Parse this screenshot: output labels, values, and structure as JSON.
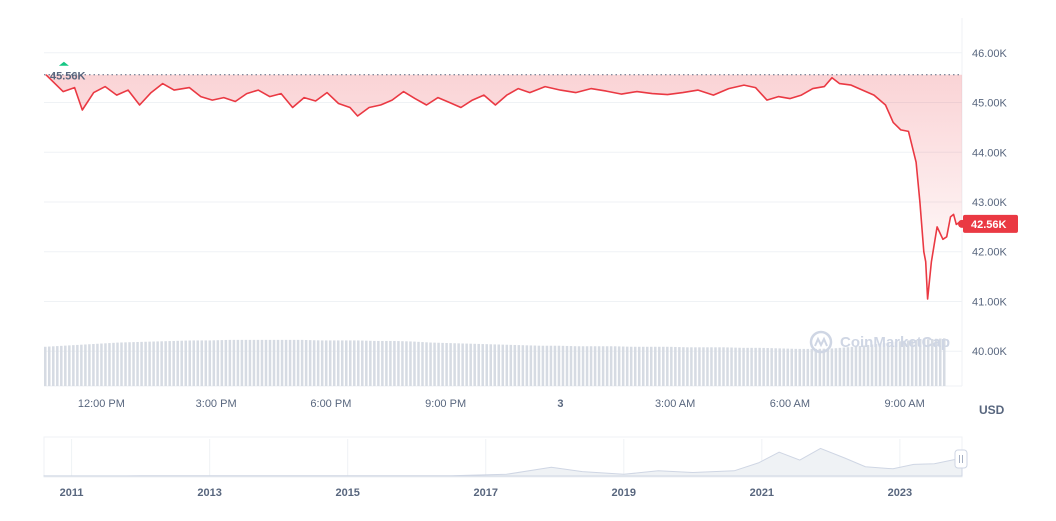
{
  "colors": {
    "price_line": "#ea3943",
    "fill_top": "#ea3943",
    "open_marker": "#16c784",
    "volume_bar": "#d6dbe3",
    "grid": "#eff2f5",
    "navigator_line": "#cfd6e4"
  },
  "chart_data": {
    "type": "line",
    "title": "",
    "xlabel": "",
    "ylabel": "",
    "currency_label": "USD",
    "watermark": "CoinMarketCap",
    "open_label": "45.56K",
    "open_value": 45560,
    "current_label": "42.56K",
    "current_value": 42560,
    "ylim": [
      39300,
      46700
    ],
    "y_ticks": [
      {
        "value": 40000,
        "label": "40.00K"
      },
      {
        "value": 41000,
        "label": "41.00K"
      },
      {
        "value": 42000,
        "label": "42.00K"
      },
      {
        "value": 43000,
        "label": "43.00K"
      },
      {
        "value": 44000,
        "label": "44.00K"
      },
      {
        "value": 45000,
        "label": "45.00K"
      },
      {
        "value": 46000,
        "label": "46.00K"
      }
    ],
    "x_range_hours": [
      10.5,
      34.5
    ],
    "x_ticks": [
      {
        "hour": 12,
        "label": "12:00 PM",
        "bold": false
      },
      {
        "hour": 15,
        "label": "3:00 PM",
        "bold": false
      },
      {
        "hour": 18,
        "label": "6:00 PM",
        "bold": false
      },
      {
        "hour": 21,
        "label": "9:00 PM",
        "bold": false
      },
      {
        "hour": 24,
        "label": "3",
        "bold": true
      },
      {
        "hour": 27,
        "label": "3:00 AM",
        "bold": false
      },
      {
        "hour": 30,
        "label": "6:00 AM",
        "bold": false
      },
      {
        "hour": 33,
        "label": "9:00 AM",
        "bold": false
      }
    ],
    "series": [
      {
        "points": [
          [
            10.55,
            45560
          ],
          [
            11.0,
            45220
          ],
          [
            11.3,
            45300
          ],
          [
            11.5,
            44850
          ],
          [
            11.8,
            45200
          ],
          [
            12.1,
            45320
          ],
          [
            12.4,
            45150
          ],
          [
            12.7,
            45250
          ],
          [
            13.0,
            44950
          ],
          [
            13.3,
            45200
          ],
          [
            13.6,
            45380
          ],
          [
            13.9,
            45250
          ],
          [
            14.3,
            45300
          ],
          [
            14.6,
            45120
          ],
          [
            14.9,
            45050
          ],
          [
            15.2,
            45100
          ],
          [
            15.5,
            45020
          ],
          [
            15.8,
            45180
          ],
          [
            16.1,
            45250
          ],
          [
            16.4,
            45120
          ],
          [
            16.7,
            45180
          ],
          [
            17.0,
            44900
          ],
          [
            17.3,
            45100
          ],
          [
            17.6,
            45030
          ],
          [
            17.9,
            45200
          ],
          [
            18.2,
            44980
          ],
          [
            18.5,
            44900
          ],
          [
            18.7,
            44730
          ],
          [
            19.0,
            44900
          ],
          [
            19.3,
            44950
          ],
          [
            19.6,
            45050
          ],
          [
            19.9,
            45220
          ],
          [
            20.2,
            45080
          ],
          [
            20.5,
            44950
          ],
          [
            20.8,
            45100
          ],
          [
            21.1,
            45000
          ],
          [
            21.4,
            44900
          ],
          [
            21.7,
            45050
          ],
          [
            22.0,
            45150
          ],
          [
            22.3,
            44950
          ],
          [
            22.6,
            45150
          ],
          [
            22.9,
            45280
          ],
          [
            23.2,
            45200
          ],
          [
            23.6,
            45320
          ],
          [
            24.0,
            45250
          ],
          [
            24.4,
            45200
          ],
          [
            24.8,
            45280
          ],
          [
            25.2,
            45230
          ],
          [
            25.6,
            45170
          ],
          [
            26.0,
            45220
          ],
          [
            26.4,
            45180
          ],
          [
            26.8,
            45160
          ],
          [
            27.2,
            45200
          ],
          [
            27.6,
            45250
          ],
          [
            28.0,
            45150
          ],
          [
            28.4,
            45280
          ],
          [
            28.8,
            45350
          ],
          [
            29.1,
            45300
          ],
          [
            29.4,
            45050
          ],
          [
            29.7,
            45120
          ],
          [
            30.0,
            45080
          ],
          [
            30.3,
            45150
          ],
          [
            30.6,
            45280
          ],
          [
            30.9,
            45320
          ],
          [
            31.1,
            45500
          ],
          [
            31.3,
            45380
          ],
          [
            31.6,
            45350
          ],
          [
            31.9,
            45250
          ],
          [
            32.2,
            45150
          ],
          [
            32.5,
            44950
          ],
          [
            32.7,
            44600
          ],
          [
            32.9,
            44450
          ],
          [
            33.1,
            44420
          ],
          [
            33.3,
            43800
          ],
          [
            33.4,
            43000
          ],
          [
            33.5,
            42000
          ],
          [
            33.55,
            41800
          ],
          [
            33.6,
            41050
          ],
          [
            33.7,
            41800
          ],
          [
            33.85,
            42500
          ],
          [
            34.0,
            42250
          ],
          [
            34.1,
            42300
          ],
          [
            34.2,
            42700
          ],
          [
            34.28,
            42750
          ],
          [
            34.35,
            42550
          ],
          [
            34.45,
            42600
          ],
          [
            34.5,
            42560
          ]
        ]
      }
    ],
    "volume_range": [
      0,
      1
    ],
    "volume": [
      0.74,
      0.76,
      0.78,
      0.8,
      0.82,
      0.83,
      0.84,
      0.85,
      0.86,
      0.86,
      0.87,
      0.87,
      0.87,
      0.87,
      0.87,
      0.86,
      0.86,
      0.86,
      0.85,
      0.85,
      0.84,
      0.82,
      0.81,
      0.8,
      0.79,
      0.78,
      0.77,
      0.76,
      0.76,
      0.75,
      0.75,
      0.75,
      0.74,
      0.74,
      0.74,
      0.73,
      0.73,
      0.73,
      0.72,
      0.72,
      0.71,
      0.7,
      0.7,
      0.71,
      0.74,
      0.78,
      0.82,
      0.86,
      0.88,
      0.9
    ]
  },
  "navigator": {
    "year_ticks": [
      "2011",
      "2013",
      "2015",
      "2017",
      "2019",
      "2021",
      "2023"
    ],
    "x_range_years": [
      2010.6,
      2023.9
    ],
    "history": [
      [
        2010.6,
        0.005
      ],
      [
        2012.0,
        0.006
      ],
      [
        2013.8,
        0.012
      ],
      [
        2015.0,
        0.008
      ],
      [
        2016.5,
        0.012
      ],
      [
        2017.3,
        0.06
      ],
      [
        2017.95,
        0.3
      ],
      [
        2018.4,
        0.15
      ],
      [
        2019.0,
        0.06
      ],
      [
        2019.5,
        0.18
      ],
      [
        2020.0,
        0.12
      ],
      [
        2020.6,
        0.18
      ],
      [
        2020.95,
        0.45
      ],
      [
        2021.25,
        0.82
      ],
      [
        2021.55,
        0.55
      ],
      [
        2021.85,
        0.95
      ],
      [
        2022.2,
        0.62
      ],
      [
        2022.5,
        0.32
      ],
      [
        2022.9,
        0.25
      ],
      [
        2023.2,
        0.4
      ],
      [
        2023.5,
        0.42
      ],
      [
        2023.9,
        0.62
      ]
    ]
  }
}
